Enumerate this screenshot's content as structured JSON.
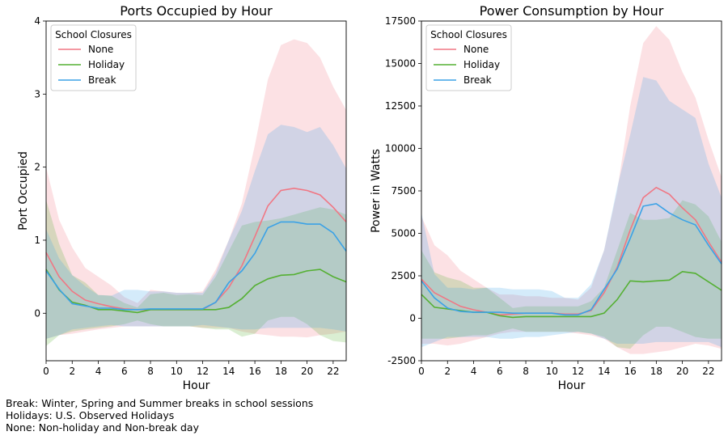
{
  "colors": {
    "None": "#f07784",
    "Holiday": "#55b033",
    "Break": "#3ba2e6"
  },
  "chart_data": [
    {
      "type": "line",
      "title": "Ports Occupied by Hour",
      "xlabel": "Hour",
      "ylabel": "Port Occupied",
      "xlim": [
        0,
        23
      ],
      "ylim": [
        -0.65,
        4
      ],
      "xticks": [
        0,
        2,
        4,
        6,
        8,
        10,
        12,
        14,
        16,
        18,
        20,
        22
      ],
      "yticks": [
        0,
        1,
        2,
        3,
        4
      ],
      "legend_title": "School Closures",
      "legend_position": "top-left",
      "x": [
        0,
        1,
        2,
        3,
        4,
        5,
        6,
        7,
        8,
        9,
        10,
        11,
        12,
        13,
        14,
        15,
        16,
        17,
        18,
        19,
        20,
        21,
        22,
        23
      ],
      "series": [
        {
          "name": "None",
          "values": [
            0.83,
            0.5,
            0.3,
            0.18,
            0.13,
            0.09,
            0.06,
            0.05,
            0.05,
            0.05,
            0.05,
            0.05,
            0.05,
            0.15,
            0.35,
            0.65,
            1.05,
            1.47,
            1.68,
            1.71,
            1.68,
            1.62,
            1.45,
            1.25
          ],
          "upper": [
            2.0,
            1.28,
            0.9,
            0.62,
            0.5,
            0.38,
            0.22,
            0.14,
            0.32,
            0.3,
            0.28,
            0.28,
            0.3,
            0.6,
            1.0,
            1.5,
            2.3,
            3.2,
            3.67,
            3.75,
            3.7,
            3.5,
            3.1,
            2.78
          ],
          "lower": [
            -0.35,
            -0.3,
            -0.28,
            -0.25,
            -0.22,
            -0.2,
            -0.18,
            -0.18,
            -0.18,
            -0.18,
            -0.18,
            -0.18,
            -0.2,
            -0.2,
            -0.2,
            -0.25,
            -0.28,
            -0.3,
            -0.32,
            -0.32,
            -0.33,
            -0.3,
            -0.28,
            -0.25
          ]
        },
        {
          "name": "Holiday",
          "values": [
            0.6,
            0.32,
            0.15,
            0.11,
            0.05,
            0.05,
            0.03,
            0.01,
            0.05,
            0.05,
            0.05,
            0.05,
            0.05,
            0.05,
            0.08,
            0.2,
            0.38,
            0.47,
            0.52,
            0.53,
            0.58,
            0.6,
            0.5,
            0.43
          ],
          "upper": [
            1.55,
            0.95,
            0.52,
            0.42,
            0.25,
            0.24,
            0.14,
            0.08,
            0.26,
            0.28,
            0.25,
            0.26,
            0.25,
            0.5,
            0.85,
            1.2,
            1.25,
            1.27,
            1.3,
            1.35,
            1.4,
            1.45,
            1.42,
            1.35
          ],
          "lower": [
            -0.45,
            -0.3,
            -0.25,
            -0.22,
            -0.2,
            -0.18,
            -0.15,
            -0.1,
            -0.15,
            -0.18,
            -0.18,
            -0.18,
            -0.2,
            -0.22,
            -0.22,
            -0.32,
            -0.28,
            -0.1,
            -0.05,
            -0.05,
            -0.15,
            -0.3,
            -0.38,
            -0.4
          ]
        },
        {
          "name": "Break",
          "values": [
            0.58,
            0.33,
            0.13,
            0.1,
            0.07,
            0.07,
            0.05,
            0.05,
            0.06,
            0.06,
            0.06,
            0.06,
            0.06,
            0.15,
            0.42,
            0.58,
            0.82,
            1.17,
            1.25,
            1.25,
            1.22,
            1.22,
            1.1,
            0.85
          ],
          "upper": [
            1.15,
            0.75,
            0.52,
            0.37,
            0.25,
            0.24,
            0.32,
            0.32,
            0.3,
            0.3,
            0.28,
            0.28,
            0.28,
            0.55,
            1.0,
            1.4,
            1.95,
            2.45,
            2.58,
            2.55,
            2.48,
            2.55,
            2.3,
            1.98
          ],
          "lower": [
            -0.35,
            -0.3,
            -0.22,
            -0.2,
            -0.18,
            -0.16,
            -0.18,
            -0.18,
            -0.18,
            -0.18,
            -0.18,
            -0.18,
            -0.16,
            -0.18,
            -0.2,
            -0.22,
            -0.22,
            -0.2,
            -0.2,
            -0.2,
            -0.2,
            -0.2,
            -0.22,
            -0.25
          ]
        }
      ]
    },
    {
      "type": "line",
      "title": "Power Consumption by Hour",
      "xlabel": "Hour",
      "ylabel": "Power in Watts",
      "xlim": [
        0,
        23
      ],
      "ylim": [
        -2500,
        17500
      ],
      "xticks": [
        0,
        2,
        4,
        6,
        8,
        10,
        12,
        14,
        16,
        18,
        20,
        22
      ],
      "yticks": [
        -2500,
        0,
        2500,
        5000,
        7500,
        10000,
        12500,
        15000,
        17500
      ],
      "legend_title": "School Closures",
      "legend_position": "top-left",
      "x": [
        0,
        1,
        2,
        3,
        4,
        5,
        6,
        7,
        8,
        9,
        10,
        11,
        12,
        13,
        14,
        15,
        16,
        17,
        18,
        19,
        20,
        21,
        22,
        23
      ],
      "series": [
        {
          "name": "None",
          "values": [
            2300,
            1500,
            1100,
            700,
            500,
            350,
            200,
            250,
            300,
            300,
            300,
            250,
            250,
            450,
            1500,
            3000,
            5200,
            7100,
            7700,
            7300,
            6500,
            5800,
            4500,
            3300
          ],
          "upper": [
            6000,
            4300,
            3700,
            2800,
            2300,
            1800,
            1400,
            1400,
            1300,
            1300,
            1200,
            1200,
            1100,
            1800,
            4000,
            7500,
            12500,
            16200,
            17200,
            16400,
            14500,
            13000,
            10500,
            8300
          ],
          "lower": [
            -1500,
            -1500,
            -1600,
            -1500,
            -1300,
            -1100,
            -900,
            -800,
            -800,
            -800,
            -800,
            -800,
            -900,
            -1000,
            -1200,
            -1700,
            -2100,
            -2100,
            -2000,
            -1900,
            -1700,
            -1500,
            -1600,
            -1800
          ]
        },
        {
          "name": "Holiday",
          "values": [
            1400,
            650,
            550,
            450,
            350,
            350,
            150,
            50,
            100,
            100,
            100,
            100,
            100,
            100,
            300,
            1100,
            2200,
            2150,
            2200,
            2250,
            2750,
            2650,
            2150,
            1650
          ],
          "upper": [
            4000,
            2700,
            2400,
            2200,
            1800,
            1800,
            1200,
            600,
            700,
            700,
            700,
            700,
            700,
            1000,
            1800,
            4000,
            6200,
            5800,
            5800,
            5900,
            6950,
            6700,
            6000,
            4500
          ],
          "lower": [
            -1200,
            -1200,
            -1200,
            -1100,
            -1000,
            -1000,
            -800,
            -600,
            -800,
            -800,
            -800,
            -800,
            -800,
            -900,
            -1100,
            -1700,
            -1800,
            -1000,
            -500,
            -500,
            -800,
            -1100,
            -1200,
            -1200
          ]
        },
        {
          "name": "Break",
          "values": [
            2200,
            1200,
            600,
            400,
            350,
            350,
            350,
            300,
            300,
            300,
            300,
            200,
            200,
            500,
            1700,
            2900,
            4700,
            6600,
            6750,
            6200,
            5800,
            5500,
            4300,
            3200
          ],
          "upper": [
            6200,
            2600,
            1800,
            1800,
            1700,
            1800,
            1800,
            1700,
            1700,
            1700,
            1600,
            1200,
            1200,
            2000,
            4000,
            7700,
            10800,
            14200,
            14000,
            12800,
            12300,
            11800,
            9100,
            7100
          ],
          "lower": [
            -1700,
            -1400,
            -1100,
            -1100,
            -1100,
            -1100,
            -1200,
            -1200,
            -1100,
            -1100,
            -1000,
            -900,
            -800,
            -900,
            -1200,
            -1500,
            -1500,
            -1500,
            -1400,
            -1400,
            -1400,
            -1400,
            -1400,
            -1700
          ]
        }
      ]
    }
  ],
  "caption": {
    "line1": "Break: Winter, Spring and Summer breaks in school sessions",
    "line2": "Holidays: U.S. Observed Holidays",
    "line3": "None: Non-holiday and Non-break day"
  }
}
